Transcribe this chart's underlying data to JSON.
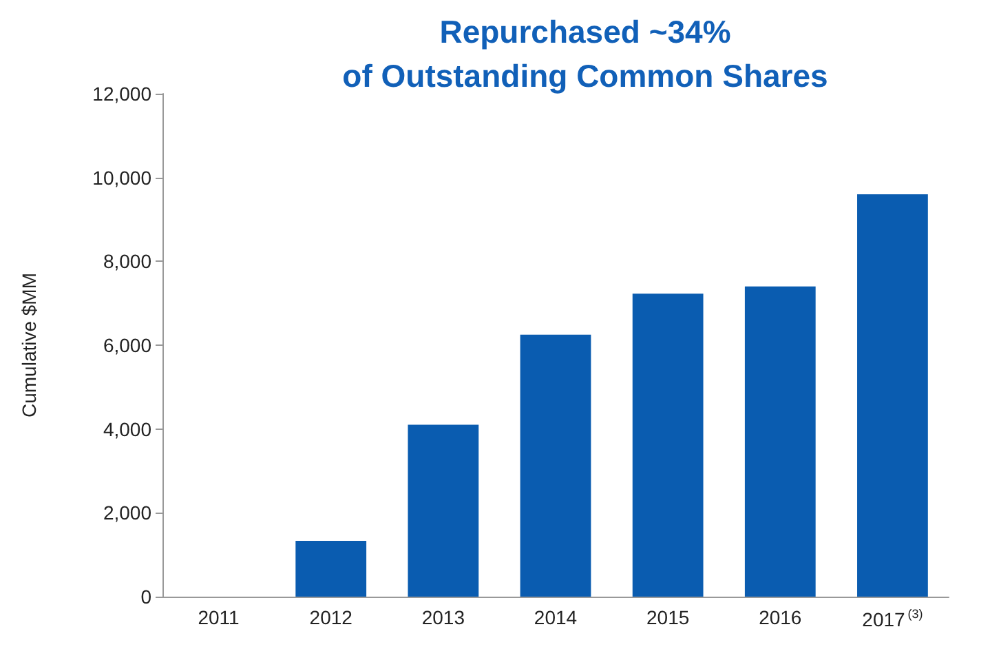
{
  "chart_data": {
    "type": "bar",
    "title": "Repurchased ~34%\nof Outstanding Common Shares",
    "ylabel": "Cumulative $MM",
    "categories": [
      "2011",
      "2012",
      "2013",
      "2014",
      "2015",
      "2016",
      "2017$^{(3)}$"
    ],
    "values": [
      0,
      1330,
      4100,
      6250,
      7230,
      7400,
      9600
    ],
    "color": "#0a5cb0",
    "ylim": [
      0,
      12000
    ],
    "yticks": [
      0,
      {
        "value": 2000,
        "label": "2,000"
      },
      {
        "value": 4000,
        "label": "4,000"
      },
      {
        "value": 6000,
        "label": "6,000"
      },
      {
        "value": 8000,
        "label": "8,000"
      },
      {
        "value": 10000,
        "label": "10,000"
      },
      {
        "value": 12000,
        "label": "12,000"
      }
    ],
    "grid": false
  }
}
